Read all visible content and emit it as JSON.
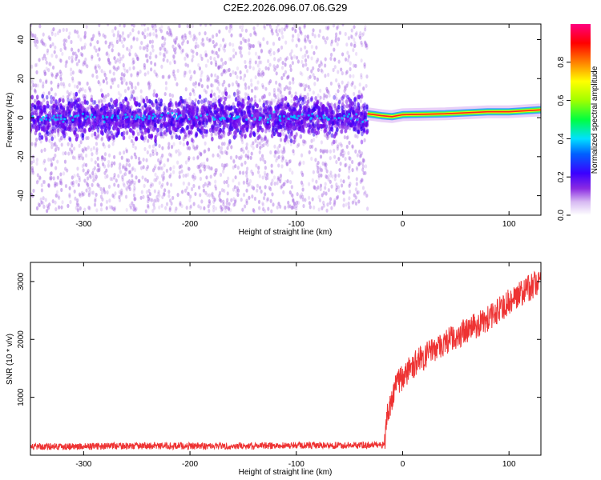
{
  "title": "C2E2.2026.096.07.06.G29",
  "chart_data": [
    {
      "type": "heatmap",
      "xlabel": "Height of straight line (km)",
      "ylabel": "Frequency (Hz)",
      "xlim": [
        -350,
        130
      ],
      "ylim": [
        -50,
        48
      ],
      "x_ticks": [
        -300,
        -200,
        -100,
        0,
        100
      ],
      "y_ticks": [
        -40,
        -20,
        0,
        20,
        40
      ],
      "colorbar": {
        "label": "Normalized spectral amplitude",
        "range": [
          0,
          1
        ],
        "ticks": [
          "0.0",
          "0.2",
          "0.4",
          "0.6",
          "0.8"
        ],
        "colormap": [
          "#ffffff",
          "#d7b9f2",
          "#8a2be2",
          "#3a00ff",
          "#0060ff",
          "#00e0ff",
          "#00ff40",
          "#a0ff00",
          "#ffff00",
          "#ff8000",
          "#ff0000",
          "#ff0080"
        ]
      },
      "noise_region_x": [
        -350,
        -33
      ],
      "signal_track": [
        {
          "x": -33,
          "y": 2
        },
        {
          "x": -20,
          "y": 1
        },
        {
          "x": -10,
          "y": 0.5
        },
        {
          "x": 0,
          "y": 1.5
        },
        {
          "x": 40,
          "y": 2
        },
        {
          "x": 80,
          "y": 3
        },
        {
          "x": 100,
          "y": 3
        },
        {
          "x": 130,
          "y": 4
        }
      ]
    },
    {
      "type": "line",
      "xlabel": "Height of straight line (km)",
      "ylabel": "SNR (10 * v/v)",
      "xlim": [
        -350,
        130
      ],
      "ylim": [
        0,
        3330
      ],
      "x_ticks": [
        -300,
        -200,
        -100,
        0,
        100
      ],
      "y_ticks": [
        1000,
        2000,
        3000
      ],
      "series": [
        {
          "color": "#ee3333",
          "x": [
            -350,
            -300,
            -250,
            -200,
            -150,
            -100,
            -50,
            -17,
            -15,
            -10,
            -5,
            0,
            10,
            20,
            30,
            40,
            50,
            60,
            70,
            80,
            90,
            100,
            110,
            120,
            130
          ],
          "y": [
            150,
            150,
            160,
            160,
            160,
            170,
            170,
            180,
            600,
            1000,
            1250,
            1350,
            1550,
            1700,
            1850,
            1950,
            2050,
            2150,
            2250,
            2350,
            2500,
            2650,
            2800,
            2900,
            3000
          ]
        }
      ]
    }
  ]
}
